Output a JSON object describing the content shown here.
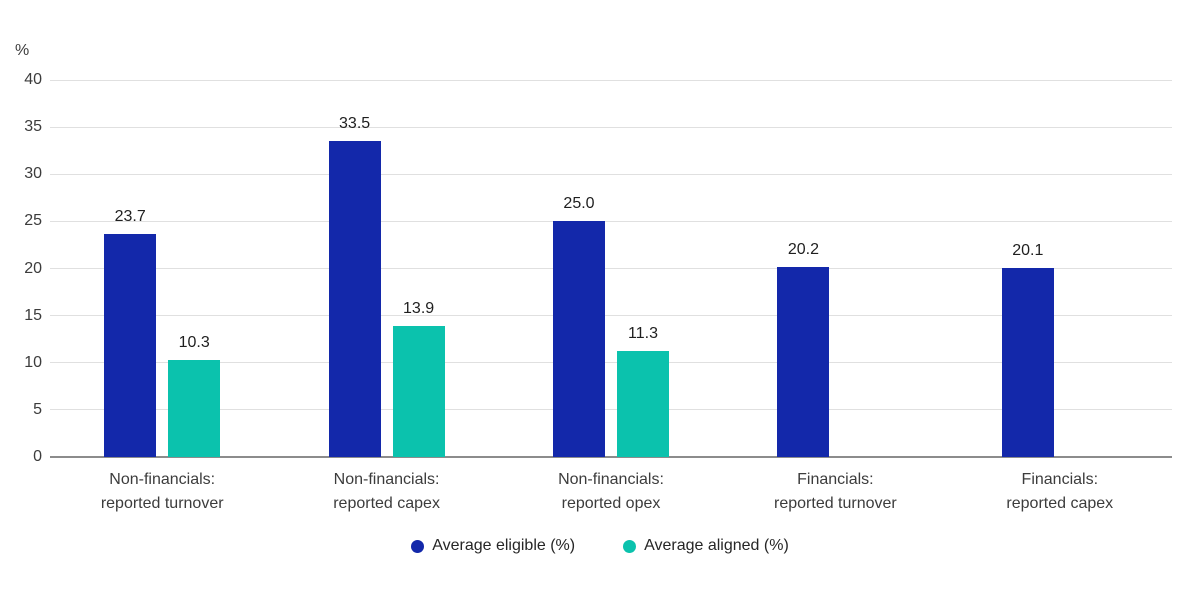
{
  "chart_data": {
    "type": "bar",
    "title": "",
    "xlabel": "",
    "ylabel": "%",
    "ylim": [
      0,
      40
    ],
    "yticks": [
      0,
      5,
      10,
      15,
      20,
      25,
      30,
      35,
      40
    ],
    "grid": true,
    "legend_position": "bottom",
    "categories": [
      "Non-financials:\nreported turnover",
      "Non-financials:\nreported capex",
      "Non-financials:\nreported opex",
      "Financials:\nreported turnover",
      "Financials:\nreported capex"
    ],
    "series": [
      {
        "name": "Average eligible (%)",
        "color": "#1328aa",
        "values": [
          23.7,
          33.5,
          25.0,
          20.2,
          20.1
        ],
        "labels": [
          "23.7",
          "33.5",
          "25.0",
          "20.2",
          "20.1"
        ]
      },
      {
        "name": "Average aligned (%)",
        "color": "#0bc2ad",
        "values": [
          10.3,
          13.9,
          11.3,
          null,
          null
        ],
        "labels": [
          "10.3",
          "13.9",
          "11.3",
          null,
          null
        ]
      }
    ],
    "colors": {
      "gridline": "#e0e0e0",
      "axis_line": "#8c8c8c",
      "text": "#3c3c3c",
      "value_label": "#1f1f1f"
    }
  }
}
